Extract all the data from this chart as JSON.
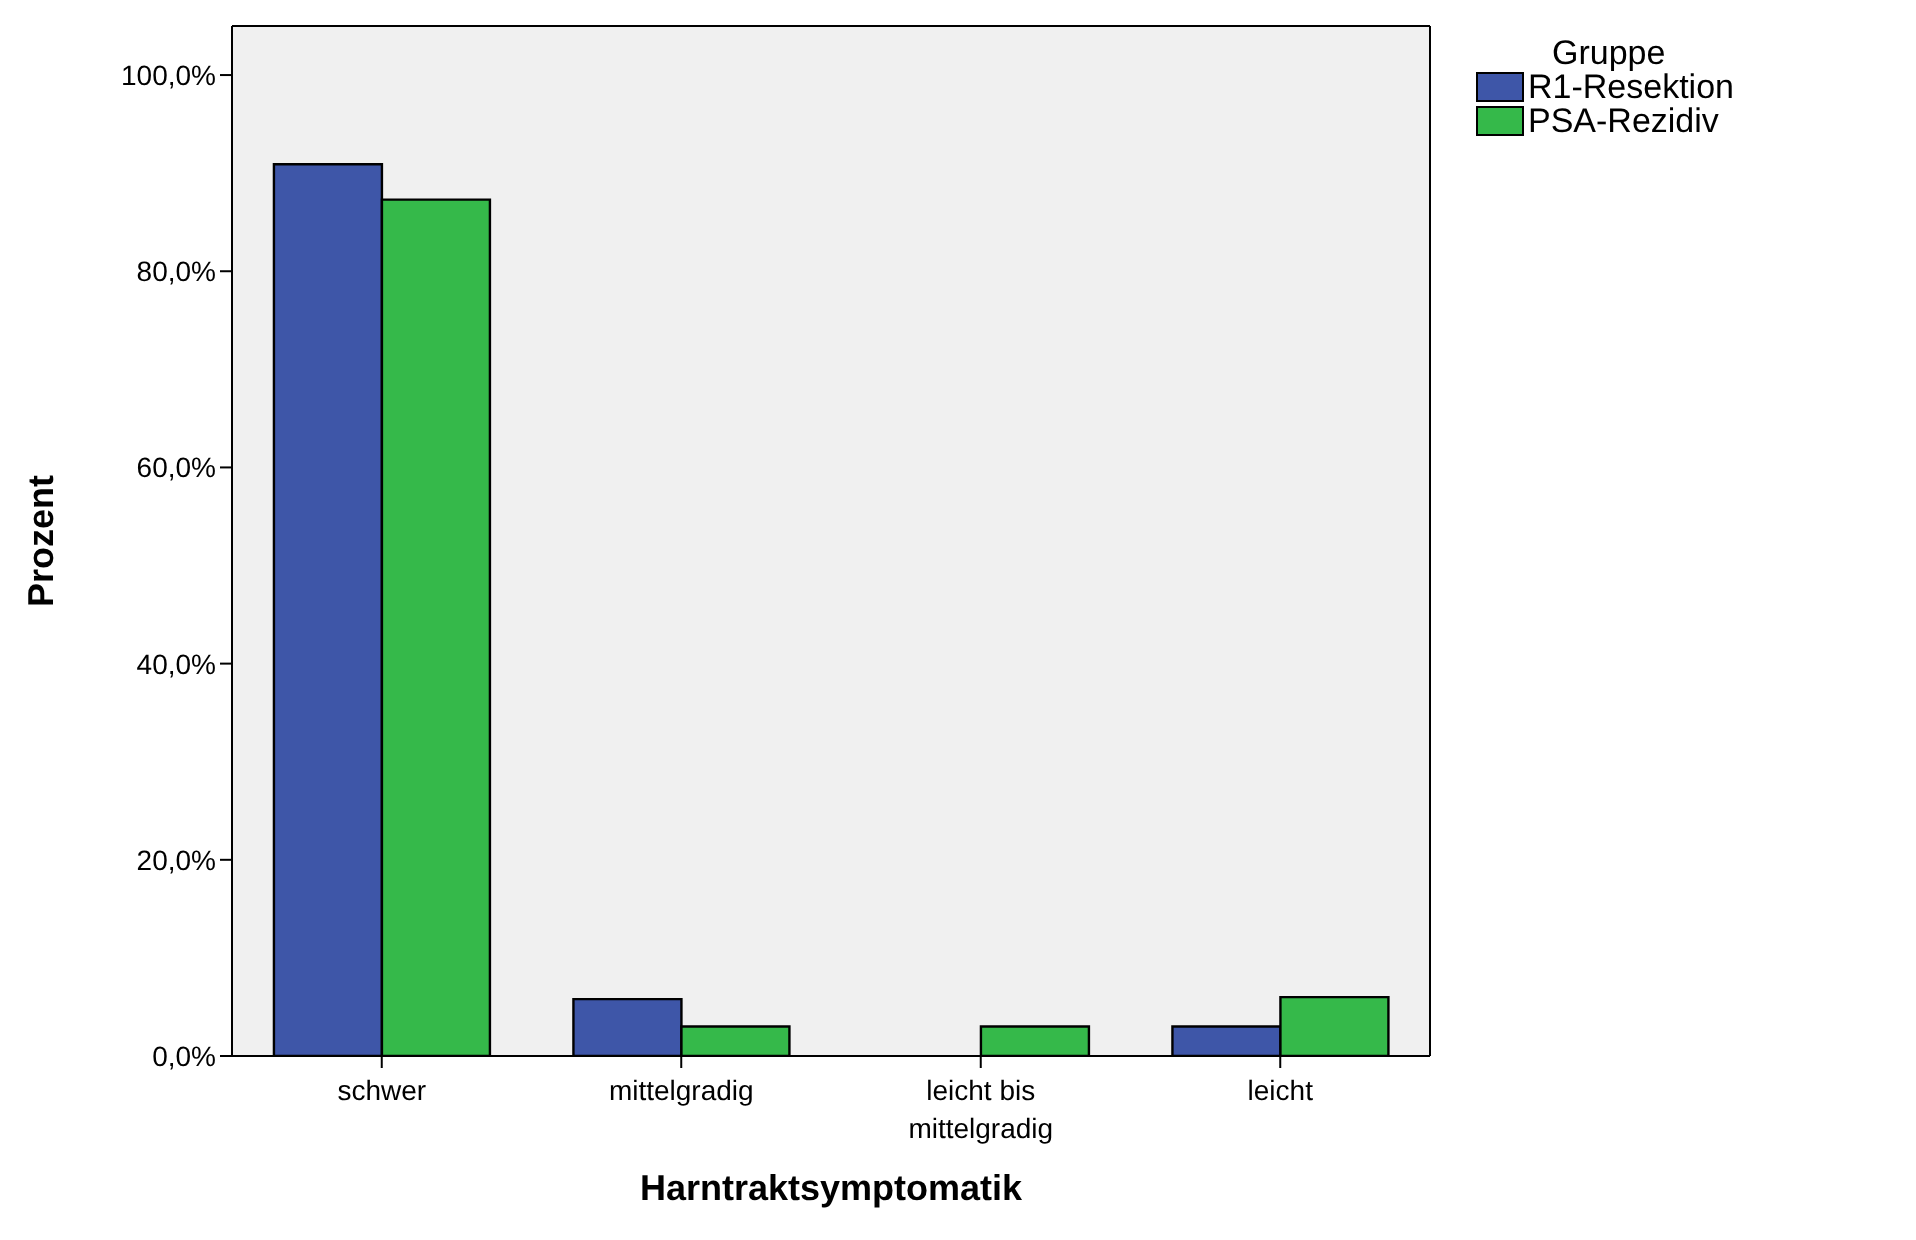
{
  "chart_data": {
    "type": "bar",
    "xlabel": "Harntraktsymptomatik",
    "ylabel": "Prozent",
    "legend_title": "Gruppe",
    "legend": "top right",
    "grid": false,
    "categories": [
      "schwer",
      "mittelgradig",
      "leicht bis mittelgradig",
      "leicht"
    ],
    "series": [
      {
        "name": "R1-Resektion",
        "color": "#3e56a8",
        "values": [
          90.9,
          5.8,
          0,
          3.0
        ]
      },
      {
        "name": "PSA-Rezidiv",
        "color": "#35b94a",
        "values": [
          87.3,
          3.0,
          3.0,
          6.0
        ]
      }
    ],
    "ylim": [
      0,
      105
    ],
    "yticks": [
      {
        "value": 0,
        "label": "0,0%"
      },
      {
        "value": 20,
        "label": "20,0%"
      },
      {
        "value": 40,
        "label": "40,0%"
      },
      {
        "value": 60,
        "label": "60,0%"
      },
      {
        "value": 80,
        "label": "80,0%"
      },
      {
        "value": 100,
        "label": "100,0%"
      }
    ]
  }
}
